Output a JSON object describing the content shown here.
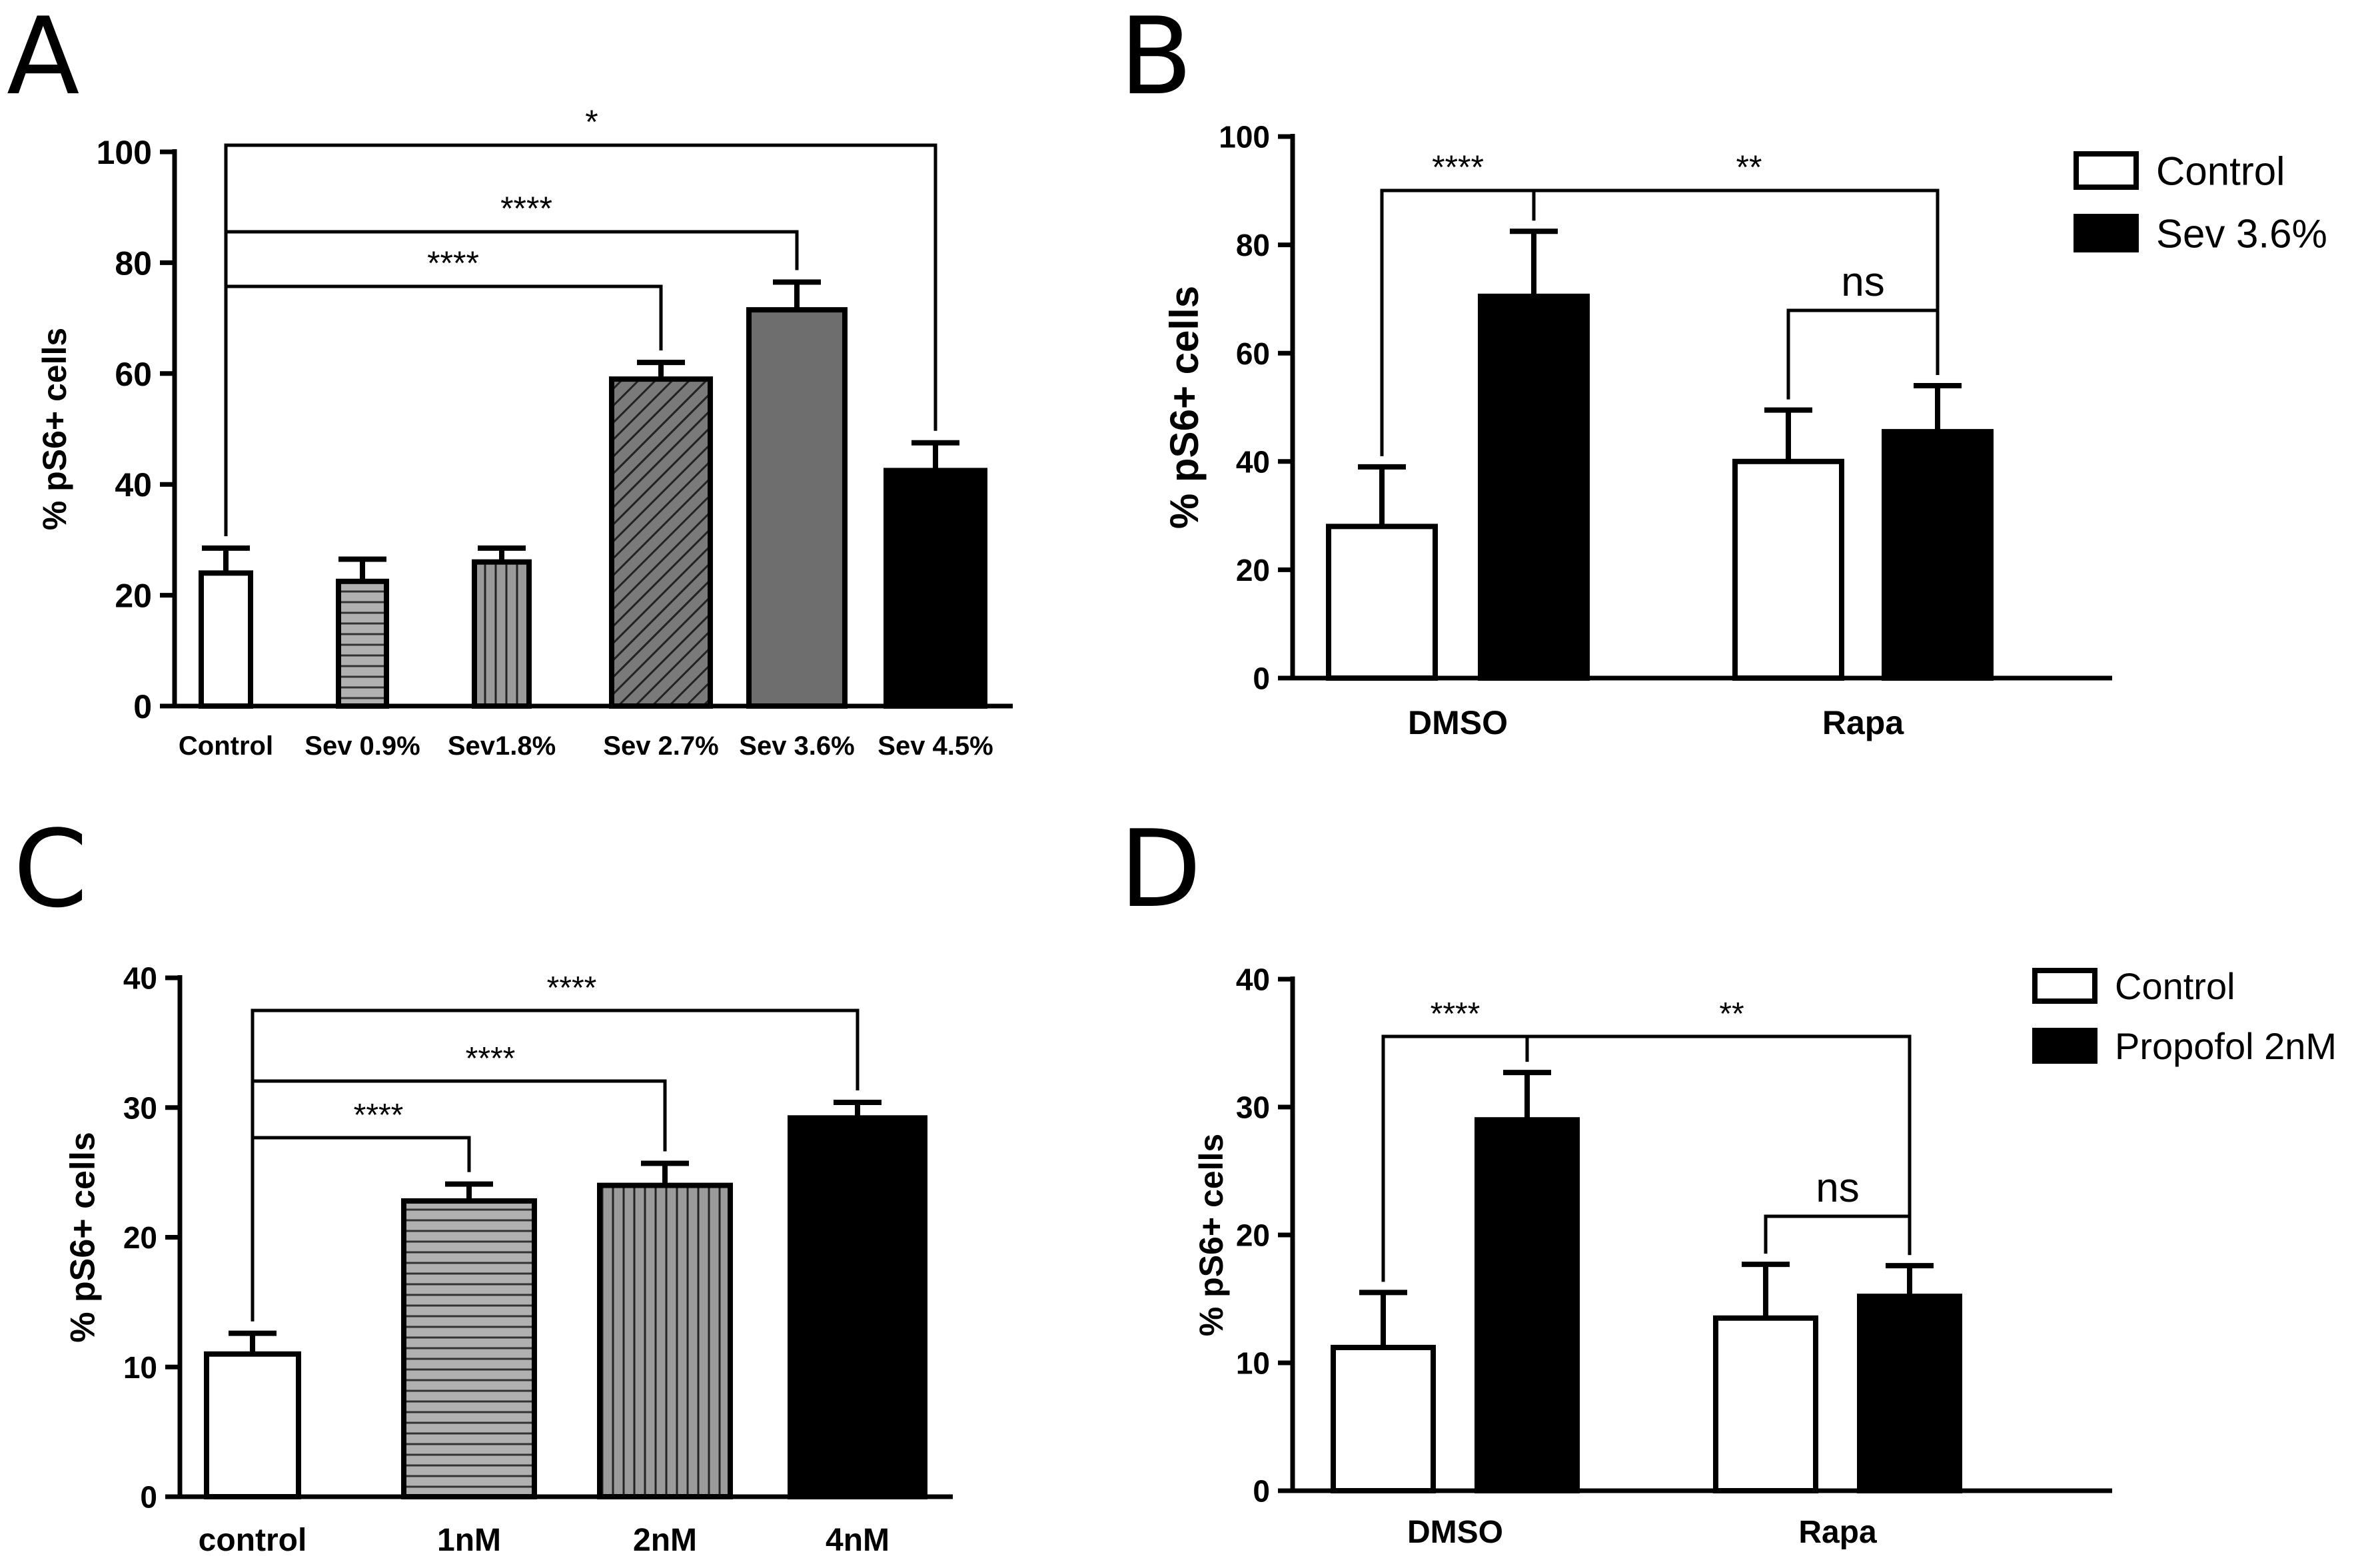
{
  "chart_data": [
    {
      "panel": "A",
      "type": "bar",
      "ylabel": "% pS6+ cells",
      "ylim": [
        0,
        100
      ],
      "yticks": [
        "0",
        "20",
        "40",
        "60",
        "80",
        "100"
      ],
      "categories": [
        "Control",
        "Sev 0.9%",
        "Sev1.8%",
        "Sev 2.7%",
        "Sev 3.6%",
        "Sev 4.5%"
      ],
      "values": [
        24,
        22.5,
        26,
        59,
        71.5,
        42.5
      ],
      "errors": [
        4.5,
        4,
        2.5,
        3,
        5,
        5
      ],
      "significance": [
        {
          "from": "Control",
          "to": "Sev 2.7%",
          "label": "****"
        },
        {
          "from": "Control",
          "to": "Sev 3.6%",
          "label": "****"
        },
        {
          "from": "Control",
          "to": "Sev 4.5%",
          "label": "*"
        }
      ]
    },
    {
      "panel": "B",
      "type": "bar",
      "ylabel": "% pS6+ cells",
      "ylim": [
        0,
        100
      ],
      "yticks": [
        "0",
        "20",
        "40",
        "60",
        "80",
        "100"
      ],
      "categories": [
        "DMSO",
        "Rapa"
      ],
      "series": [
        {
          "name": "Control",
          "values": [
            28,
            40
          ],
          "errors": [
            11,
            9.5
          ]
        },
        {
          "name": "Sev 3.6%",
          "values": [
            70.5,
            45.5
          ],
          "errors": [
            12,
            8.5
          ]
        }
      ],
      "significance": [
        {
          "label": "****"
        },
        {
          "label": "**"
        },
        {
          "label": "ns"
        }
      ]
    },
    {
      "panel": "C",
      "type": "bar",
      "ylabel": "% pS6+ cells",
      "ylim": [
        0,
        40
      ],
      "yticks": [
        "0",
        "10",
        "20",
        "30",
        "40"
      ],
      "categories": [
        "control",
        "1nM",
        "2nM",
        "4nM"
      ],
      "values": [
        11,
        22.8,
        24,
        29.2
      ],
      "errors": [
        1.6,
        1.3,
        1.7,
        1.2
      ],
      "significance": [
        {
          "from": "control",
          "to": "1nM",
          "label": "****"
        },
        {
          "from": "control",
          "to": "2nM",
          "label": "****"
        },
        {
          "from": "control",
          "to": "4nM",
          "label": "****"
        }
      ]
    },
    {
      "panel": "D",
      "type": "bar",
      "ylabel": "% pS6+ cells",
      "ylim": [
        0,
        40
      ],
      "yticks": [
        "0",
        "10",
        "20",
        "30",
        "40"
      ],
      "categories": [
        "DMSO",
        "Rapa"
      ],
      "series": [
        {
          "name": "Control",
          "values": [
            11.2,
            13.5
          ],
          "errors": [
            4.3,
            4.2
          ]
        },
        {
          "name": "Propofol 2nM",
          "values": [
            29,
            15.2
          ],
          "errors": [
            3.7,
            2.4
          ]
        }
      ],
      "significance": [
        {
          "label": "****"
        },
        {
          "label": "**"
        },
        {
          "label": "ns"
        }
      ]
    }
  ]
}
